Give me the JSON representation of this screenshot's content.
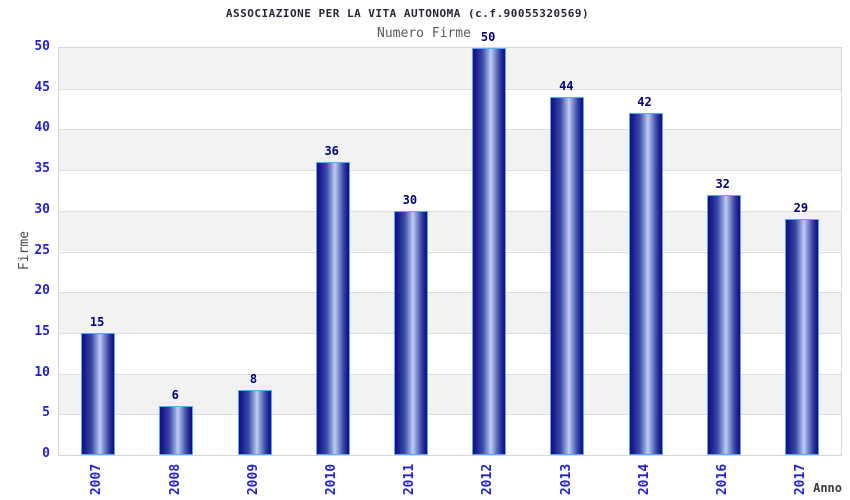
{
  "chart_data": {
    "type": "bar",
    "title": "ASSOCIAZIONE PER LA VITA AUTONOMA (c.f.90055320569)",
    "subtitle": "Numero Firme",
    "xlabel": "Anno",
    "ylabel": "Firme",
    "categories": [
      "2007",
      "2008",
      "2009",
      "2010",
      "2011",
      "2012",
      "2013",
      "2014",
      "2016",
      "2017"
    ],
    "values": [
      15,
      6,
      8,
      36,
      30,
      50,
      44,
      42,
      32,
      29
    ],
    "ylim": [
      0,
      50
    ],
    "ytick_step": 5,
    "yticks": [
      0,
      5,
      10,
      15,
      20,
      25,
      30,
      35,
      40,
      45,
      50
    ],
    "grid": "horizontal-bands",
    "legend_position": "none"
  },
  "colors": {
    "title_text": "#26263a",
    "subtitle_text": "#5a5a5a",
    "tick_label": "#2323cc",
    "value_label": "#000080",
    "axis_title": "#4a4a4a",
    "band_gray": "#f2f2f2",
    "band_white": "#ffffff",
    "grid_line": "#dddddd",
    "plot_border": "#d6d6d6",
    "bar_border": "#59a9ff",
    "bar_dark": "#10107e",
    "bar_light": "#c2cdf2"
  }
}
